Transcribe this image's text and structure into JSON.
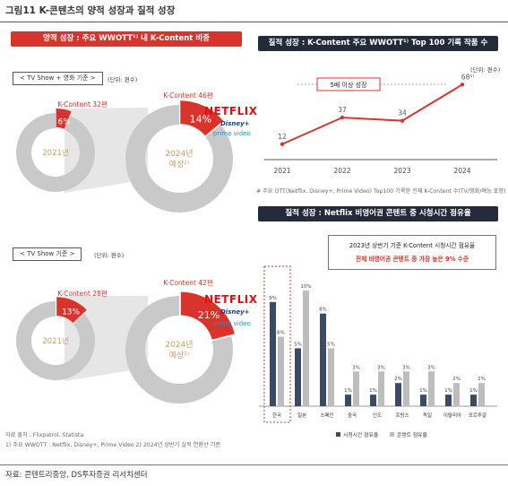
{
  "figure_title": "그림11  K-콘텐츠의 양적 성장과 질적 성장",
  "source_bottom": "자료: 콘텐트리중앙, DS투자증권 리서치센터",
  "left_panel": {
    "banner": "양적 성장 : 주요 WWOTT¹⁾ 내 K-Content 비중",
    "chart1_tag": "< TV Show + 영화 기준 >",
    "chart1_unit": "(단위: 편수)",
    "chart2_tag": "< TV Show 기준 >",
    "chart2_unit": "(단위: 편수)",
    "source_lines": [
      "자료 출처 : Flixpatrol, Statista",
      "1) 주요 WWOTT : Netflix, Disney+, Prime Video  2) 2024년 상반기 실적 연환산 기준"
    ]
  },
  "logos": {
    "netflix": "NETFLIX",
    "disney": "Disney+",
    "prime": "prime video"
  },
  "top_right_panel": {
    "banner": "질적 성장 : K-Content 주요 WWOTT¹⁾ Top 100 기록 작품 수",
    "unit": "(단위: 편수)",
    "annotation": "5배 이상 성장",
    "note": "# 주요 OTT(Netflix, Disney+, Prime Video) Top100 기록한 전체 K-Content 수(TV/영화/예능 포함)"
  },
  "bottom_right_panel": {
    "banner": "질적 성장 : Netflix 비영어권 콘텐트 중 시청시간 점유율",
    "callout_line1": "2023년 상반기 기준 K-Content 시청시간 점유율",
    "callout_line2": "전체 비영어권 콘텐트 중 가장 높은 9% 수준",
    "legend_viewing": "시청시간 점유율",
    "legend_content": "콘텐트 점유율"
  },
  "colors": {
    "accent_red": "#d9342b",
    "navy": "#232a3a",
    "ring_gray": "#c9c9c9",
    "bar_navy": "#3b4a66",
    "bar_gray": "#bdbdbd",
    "netflix_red": "#e50914",
    "disney_blue": "#1a3d8f",
    "prime_blue": "#1a98d5"
  },
  "chart_data": [
    {
      "type": "pie",
      "id": "donut_tv_movie_2021",
      "label": "K-Content 32편",
      "percent_label": "6%",
      "center_label": "2021년",
      "values": [
        6,
        94
      ]
    },
    {
      "type": "pie",
      "id": "donut_tv_movie_2024",
      "label": "K-Content 46편",
      "percent_label": "14%",
      "center_label": "2024년 예상²⁾",
      "values": [
        14,
        86
      ]
    },
    {
      "type": "pie",
      "id": "donut_tvshow_2021",
      "label": "K-Content 28편",
      "percent_label": "13%",
      "center_label": "2021년",
      "values": [
        13,
        87
      ]
    },
    {
      "type": "pie",
      "id": "donut_tvshow_2024",
      "label": "K-Content 42편",
      "percent_label": "21%",
      "center_label": "2024년 예상²⁾",
      "values": [
        21,
        79
      ]
    },
    {
      "type": "line",
      "id": "top100_count",
      "categories": [
        "2021",
        "2022",
        "2023",
        "2024"
      ],
      "values": [
        12,
        37,
        34,
        68
      ],
      "value_labels": [
        "12",
        "37",
        "34",
        "68¹⁾"
      ],
      "ylim": [
        0,
        75
      ]
    },
    {
      "type": "bar",
      "id": "netflix_share",
      "categories": [
        "한국",
        "일본",
        "스페인",
        "중국",
        "인도",
        "프랑스",
        "독일",
        "이탈리아",
        "포르투갈"
      ],
      "series": [
        {
          "name": "시청시간 점유율",
          "values": [
            9,
            5,
            8,
            1,
            1,
            2,
            1,
            1,
            1
          ],
          "labels": [
            "9%",
            "5%",
            "8%",
            "1%",
            "1%",
            "2%",
            "1%",
            "1%",
            "1%"
          ]
        },
        {
          "name": "콘텐트 점유율",
          "values": [
            6,
            10,
            5,
            3,
            3,
            3,
            3,
            2,
            2
          ],
          "labels": [
            "6%",
            "10%",
            "5%",
            "3%",
            "3%",
            "3%",
            "3%",
            "2%",
            "2%"
          ]
        }
      ],
      "ylim": [
        0,
        11
      ],
      "highlight_category": "한국"
    }
  ]
}
